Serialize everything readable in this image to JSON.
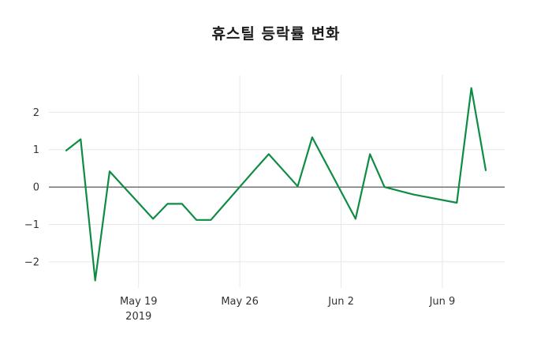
{
  "page": {
    "background": "#ffffff"
  },
  "chart_data": {
    "type": "line",
    "title": "휴스틸 등락률 변화",
    "xlabel": "",
    "ylabel": "",
    "grid": true,
    "zero_line": true,
    "legend": "none",
    "ylim": [
      -2.7,
      3.0
    ],
    "y_ticks": [
      -2,
      -1,
      0,
      1,
      2
    ],
    "x_ticks": [
      {
        "label": "May 19",
        "sublabel": "2019",
        "date": "2019-05-19"
      },
      {
        "label": "May 26",
        "sublabel": "",
        "date": "2019-05-26"
      },
      {
        "label": "Jun 2",
        "sublabel": "",
        "date": "2019-06-02"
      },
      {
        "label": "Jun 9",
        "sublabel": "",
        "date": "2019-06-09"
      }
    ],
    "colors": {
      "line": "#0e8c44",
      "grid": "#e7e7e7",
      "zero_line": "#333333",
      "tick_label": "#333333",
      "title": "#1a1a1a"
    },
    "series": [
      {
        "name": "등락률",
        "points": [
          {
            "date": "2019-05-14",
            "value": 0.98
          },
          {
            "date": "2019-05-15",
            "value": 1.28
          },
          {
            "date": "2019-05-16",
            "value": -2.5
          },
          {
            "date": "2019-05-17",
            "value": 0.42
          },
          {
            "date": "2019-05-20",
            "value": -0.85
          },
          {
            "date": "2019-05-21",
            "value": -0.45
          },
          {
            "date": "2019-05-22",
            "value": -0.45
          },
          {
            "date": "2019-05-23",
            "value": -0.88
          },
          {
            "date": "2019-05-24",
            "value": -0.88
          },
          {
            "date": "2019-05-27",
            "value": 0.45
          },
          {
            "date": "2019-05-28",
            "value": 0.88
          },
          {
            "date": "2019-05-29",
            "value": 0.45
          },
          {
            "date": "2019-05-30",
            "value": 0.02
          },
          {
            "date": "2019-05-31",
            "value": 1.33
          },
          {
            "date": "2019-06-03",
            "value": -0.85
          },
          {
            "date": "2019-06-04",
            "value": 0.88
          },
          {
            "date": "2019-06-05",
            "value": 0.0
          },
          {
            "date": "2019-06-07",
            "value": -0.2
          },
          {
            "date": "2019-06-10",
            "value": -0.42
          },
          {
            "date": "2019-06-11",
            "value": 2.65
          },
          {
            "date": "2019-06-12",
            "value": 0.45
          }
        ]
      }
    ]
  }
}
